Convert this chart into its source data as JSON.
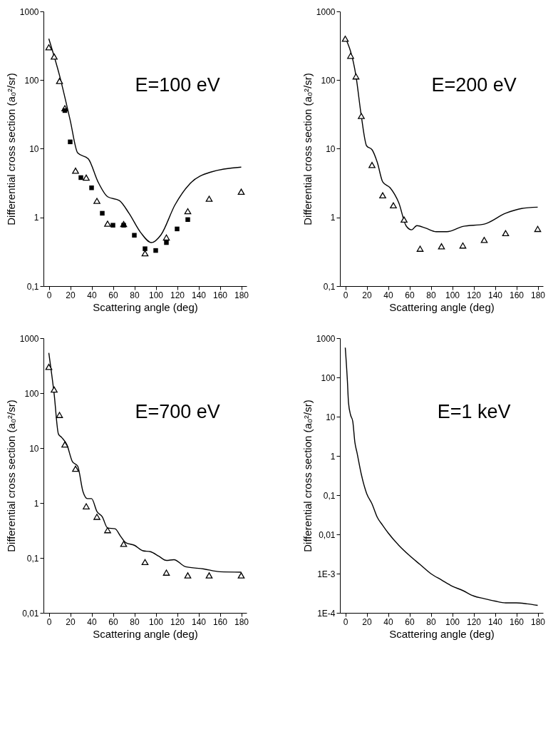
{
  "chart_data": [
    {
      "type": "scatter",
      "xlabel": "Scattering angle (deg)",
      "ylabel": "Differential cross section (a₀²/sr)",
      "annotations": [
        "E=100 eV"
      ],
      "log": true,
      "xlim": [
        -5,
        185
      ],
      "xticks": [
        0,
        20,
        40,
        60,
        80,
        100,
        120,
        140,
        160,
        180
      ],
      "ylim": [
        0.1,
        1000
      ],
      "yticks": [
        {
          "value": 0.1,
          "label": "0,1"
        },
        1,
        10,
        100,
        1000
      ],
      "series": [
        {
          "type": "line",
          "color": "#000000",
          "x": [
            0,
            10,
            20,
            27,
            37,
            46,
            55,
            66,
            75,
            86,
            96,
            105,
            118,
            132,
            152,
            180
          ],
          "values": [
            400,
            117,
            26,
            8.7,
            7.1,
            3.3,
            2.0,
            1.76,
            1.15,
            0.6,
            0.43,
            0.56,
            1.52,
            3.1,
            4.6,
            5.4
          ]
        },
        {
          "marker": "triangle",
          "color": "#000000",
          "x": [
            0,
            5,
            10,
            15,
            25,
            35,
            45,
            55,
            70,
            90,
            110,
            130,
            150,
            180
          ],
          "values": [
            300,
            220,
            97,
            39,
            4.8,
            3.8,
            1.74,
            0.81,
            0.8,
            0.3,
            0.51,
            1.23,
            1.87,
            2.37
          ]
        },
        {
          "marker": "square",
          "color": "#000000",
          "x": [
            15,
            20,
            30,
            40,
            50,
            60,
            70,
            80,
            90,
            100,
            110,
            120,
            130
          ],
          "values": [
            36,
            12.6,
            3.8,
            2.7,
            1.15,
            0.77,
            0.77,
            0.55,
            0.35,
            0.33,
            0.43,
            0.68,
            0.93
          ]
        }
      ]
    },
    {
      "type": "scatter",
      "xlabel": "Scattering angle (deg)",
      "ylabel": "Differential cross section (a₀²/sr)",
      "annotations": [
        "E=200 eV"
      ],
      "log": true,
      "xlim": [
        -5,
        185
      ],
      "xticks": [
        0,
        20,
        40,
        60,
        80,
        100,
        120,
        140,
        160,
        180
      ],
      "ylim": [
        0.1,
        1000
      ],
      "yticks": [
        {
          "value": 0.1,
          "label": "0,1"
        },
        1,
        10,
        100,
        1000
      ],
      "series": [
        {
          "type": "line",
          "color": "#000000",
          "x": [
            0,
            10,
            15,
            20,
            25,
            30,
            35,
            42,
            50,
            57,
            62,
            67,
            75,
            85,
            95,
            110,
            130,
            150,
            165,
            180
          ],
          "values": [
            417,
            115,
            30,
            11,
            9.7,
            6.3,
            3.3,
            2.7,
            1.64,
            0.75,
            0.66,
            0.76,
            0.7,
            0.62,
            0.62,
            0.74,
            0.8,
            1.15,
            1.35,
            1.41
          ]
        },
        {
          "marker": "triangle",
          "color": "#000000",
          "x": [
            0,
            5,
            10,
            15,
            25,
            35,
            45,
            55,
            70,
            90,
            110,
            130,
            150,
            180
          ],
          "values": [
            400,
            226,
            113,
            30,
            5.8,
            2.1,
            1.5,
            0.93,
            0.35,
            0.38,
            0.39,
            0.47,
            0.59,
            0.68
          ]
        }
      ]
    },
    {
      "type": "scatter",
      "xlabel": "Scattering angle (deg)",
      "ylabel": "Differential cross section (a₀²/sr)",
      "annotations": [
        "E=700 eV"
      ],
      "log": true,
      "xlim": [
        -5,
        185
      ],
      "xticks": [
        0,
        20,
        40,
        60,
        80,
        100,
        120,
        140,
        160,
        180
      ],
      "ylim": [
        0.01,
        1000
      ],
      "yticks": [
        {
          "value": 0.01,
          "label": "0,01"
        },
        {
          "value": 0.1,
          "label": "0,1"
        },
        1,
        10,
        100,
        1000
      ],
      "series": [
        {
          "type": "line",
          "color": "#000000",
          "x": [
            0,
            5,
            9,
            12,
            17,
            22,
            27,
            32,
            36,
            40,
            45,
            50,
            55,
            62,
            67,
            72,
            80,
            88,
            95,
            103,
            110,
            117,
            128,
            145,
            160,
            180
          ],
          "values": [
            540,
            96,
            18,
            15.6,
            11.4,
            5.7,
            4.7,
            1.6,
            1.2,
            1.2,
            0.7,
            0.56,
            0.35,
            0.34,
            0.25,
            0.19,
            0.17,
            0.135,
            0.13,
            0.107,
            0.09,
            0.093,
            0.069,
            0.063,
            0.056,
            0.055
          ]
        },
        {
          "marker": "triangle",
          "color": "#000000",
          "x": [
            0,
            5,
            10,
            15,
            25,
            35,
            45,
            55,
            70,
            90,
            110,
            130,
            150,
            180
          ],
          "values": [
            300,
            116,
            40,
            11.6,
            4.2,
            0.87,
            0.56,
            0.32,
            0.18,
            0.084,
            0.054,
            0.048,
            0.048,
            0.048
          ]
        }
      ]
    },
    {
      "type": "line",
      "xlabel": "Scattering angle (deg)",
      "ylabel": "Differential cross section (a₀²/sr)",
      "annotations": [
        "E=1 keV"
      ],
      "log": true,
      "xlim": [
        -5,
        185
      ],
      "xticks": [
        0,
        20,
        40,
        60,
        80,
        100,
        120,
        140,
        160,
        180
      ],
      "ylim": [
        0.0001,
        1000
      ],
      "yticks": [
        {
          "value": 0.0001,
          "label": "1E-4"
        },
        {
          "value": 0.001,
          "label": "1E-3"
        },
        {
          "value": 0.01,
          "label": "0,01"
        },
        {
          "value": 0.1,
          "label": "0,1"
        },
        1,
        10,
        100,
        1000
      ],
      "series": [
        {
          "color": "#000000",
          "x": [
            0,
            2,
            3,
            5,
            7,
            9,
            11,
            15,
            20,
            25,
            30,
            35,
            40,
            50,
            60,
            70,
            80,
            90,
            100,
            110,
            120,
            130,
            140,
            150,
            160,
            170,
            180
          ],
          "values": [
            575,
            80,
            23,
            11,
            7.6,
            2.2,
            1.2,
            0.34,
            0.11,
            0.06,
            0.027,
            0.017,
            0.011,
            0.0053,
            0.0029,
            0.0017,
            0.001,
            0.00069,
            0.00048,
            0.00037,
            0.00027,
            0.00023,
            0.0002,
            0.00018,
            0.00018,
            0.00017,
            0.000155
          ]
        }
      ]
    }
  ]
}
